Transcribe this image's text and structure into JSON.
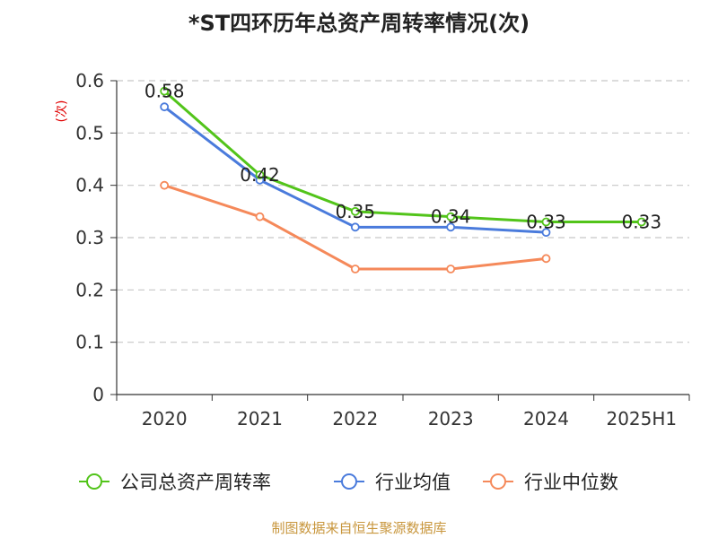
{
  "chart_data": {
    "type": "line",
    "title": "*ST四环历年总资产周转率情况(次)",
    "ylabel": "(次)",
    "xlabel": "",
    "categories": [
      "2020",
      "2021",
      "2022",
      "2023",
      "2024",
      "2025H1"
    ],
    "ylim": [
      0,
      0.6
    ],
    "yticks": [
      "0",
      "0.1",
      "0.2",
      "0.3",
      "0.4",
      "0.5",
      "0.6"
    ],
    "grid": true,
    "legend_position": "bottom",
    "series": [
      {
        "name": "公司总资产周转率",
        "color": "#52c41a",
        "values": [
          0.58,
          0.42,
          0.35,
          0.34,
          0.33,
          0.33
        ],
        "labels": [
          "0.58",
          "0.42",
          "0.35",
          "0.34",
          "0.33",
          "0.33"
        ]
      },
      {
        "name": "行业均值",
        "color": "#4a7bdc",
        "values": [
          0.55,
          0.41,
          0.32,
          0.32,
          0.31,
          null
        ]
      },
      {
        "name": "行业中位数",
        "color": "#f5895a",
        "values": [
          0.4,
          0.34,
          0.24,
          0.24,
          0.26,
          null
        ]
      }
    ]
  },
  "source": "制图数据来自恒生聚源数据库"
}
